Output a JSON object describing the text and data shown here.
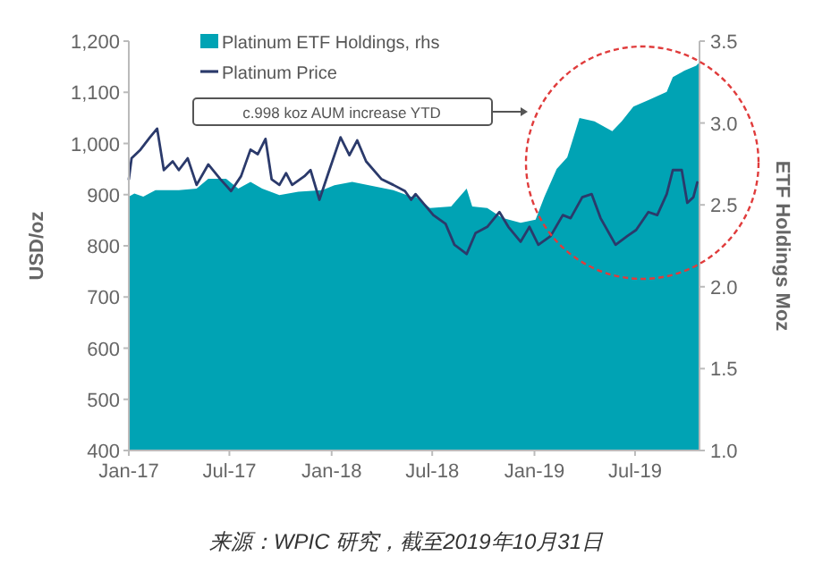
{
  "chart_data": {
    "type": "line",
    "ylabel": "USD/oz",
    "y2label": "ETF Holdings Moz",
    "annotations": [
      "c.998 koz AUM increase YTD",
      "来源：WPIC 研究，截至2019年10月31日"
    ],
    "xlim": [
      "2017-01-01",
      "2019-10-25"
    ],
    "xticks": [
      {
        "value": "2017-01",
        "label": "Jan-17"
      },
      {
        "value": "2017-07",
        "label": "Jul-17"
      },
      {
        "value": "2018-01",
        "label": "Jan-18"
      },
      {
        "value": "2018-07",
        "label": "Jul-18"
      },
      {
        "value": "2019-01",
        "label": "Jan-19"
      },
      {
        "value": "2019-07",
        "label": "Jul-19"
      }
    ],
    "ylim": [
      400,
      1200
    ],
    "yticks": [
      400,
      500,
      600,
      700,
      800,
      900,
      {
        "value": 1000,
        "label": "1,000"
      },
      {
        "value": 1100,
        "label": "1,100"
      },
      {
        "value": 1200,
        "label": "1,200"
      }
    ],
    "y2lim": [
      1.0,
      3.5
    ],
    "y2ticks": [
      {
        "value": 1.0,
        "label": "1.0"
      },
      1.5,
      {
        "value": 2.0,
        "label": "2.0"
      },
      2.5,
      {
        "value": 3.0,
        "label": "3.0"
      },
      3.5
    ],
    "legend": "top left",
    "series": [
      {
        "name": "Platinum ETF Holdings, rhs",
        "type": "area",
        "axis": "y2",
        "color": "#00a3b4",
        "x": [
          "2017-01-01",
          "2017-01-11",
          "2017-01-27",
          "2017-02-18",
          "2017-04-01",
          "2017-05-03",
          "2017-05-24",
          "2017-06-25",
          "2017-07-17",
          "2017-08-08",
          "2017-08-29",
          "2017-09-29",
          "2017-11-02",
          "2017-12-15",
          "2018-01-06",
          "2018-02-07",
          "2018-03-09",
          "2018-04-22",
          "2018-05-24",
          "2018-06-01",
          "2018-06-27",
          "2018-08-04",
          "2018-09-01",
          "2018-09-11",
          "2018-10-08",
          "2018-11-04",
          "2018-12-07",
          "2019-01-03",
          "2019-01-19",
          "2019-02-10",
          "2019-03-01",
          "2019-03-23",
          "2019-04-19",
          "2019-05-21",
          "2019-06-07",
          "2019-06-28",
          "2019-07-25",
          "2019-08-27",
          "2019-09-07",
          "2019-09-28",
          "2019-10-19",
          "2019-10-25"
        ],
        "values": [
          2.55,
          2.57,
          2.55,
          2.59,
          2.59,
          2.6,
          2.66,
          2.66,
          2.6,
          2.64,
          2.6,
          2.56,
          2.58,
          2.59,
          2.62,
          2.64,
          2.62,
          2.59,
          2.55,
          2.55,
          2.48,
          2.49,
          2.6,
          2.49,
          2.48,
          2.42,
          2.39,
          2.41,
          2.55,
          2.72,
          2.79,
          3.03,
          3.01,
          2.95,
          3.01,
          3.1,
          3.14,
          3.19,
          3.28,
          3.32,
          3.35,
          3.37
        ]
      },
      {
        "name": "Platinum Price",
        "color": "#2b3a6b",
        "x": [
          "2017-01-01",
          "2017-01-06",
          "2017-01-22",
          "2017-02-08",
          "2017-02-21",
          "2017-03-05",
          "2017-03-21",
          "2017-04-01",
          "2017-04-17",
          "2017-05-03",
          "2017-05-24",
          "2017-06-15",
          "2017-07-04",
          "2017-07-22",
          "2017-08-08",
          "2017-08-21",
          "2017-09-04",
          "2017-09-15",
          "2017-09-29",
          "2017-10-11",
          "2017-10-22",
          "2017-11-13",
          "2017-11-24",
          "2017-12-10",
          "2017-12-26",
          "2018-01-17",
          "2018-02-02",
          "2018-02-16",
          "2018-03-04",
          "2018-04-01",
          "2018-04-22",
          "2018-05-13",
          "2018-05-24",
          "2018-06-01",
          "2018-07-03",
          "2018-07-25",
          "2018-08-10",
          "2018-09-01",
          "2018-09-17",
          "2018-10-08",
          "2018-10-30",
          "2018-11-15",
          "2018-12-07",
          "2018-12-23",
          "2019-01-08",
          "2019-01-30",
          "2019-02-21",
          "2019-03-07",
          "2019-03-28",
          "2019-04-14",
          "2019-04-30",
          "2019-05-27",
          "2019-06-17",
          "2019-07-03",
          "2019-07-25",
          "2019-08-10",
          "2019-08-27",
          "2019-09-07",
          "2019-09-23",
          "2019-10-03",
          "2019-10-14",
          "2019-10-21"
        ],
        "values": [
          930,
          971,
          988,
          1012,
          1029,
          948,
          965,
          948,
          971,
          919,
          959,
          930,
          907,
          936,
          988,
          979,
          1009,
          930,
          919,
          942,
          919,
          936,
          948,
          890,
          942,
          1012,
          977,
          1006,
          965,
          930,
          919,
          907,
          890,
          901,
          860,
          843,
          802,
          784,
          825,
          837,
          866,
          837,
          808,
          837,
          802,
          819,
          860,
          854,
          895,
          901,
          854,
          802,
          819,
          831,
          866,
          860,
          901,
          948,
          948,
          884,
          895,
          924
        ]
      }
    ]
  }
}
